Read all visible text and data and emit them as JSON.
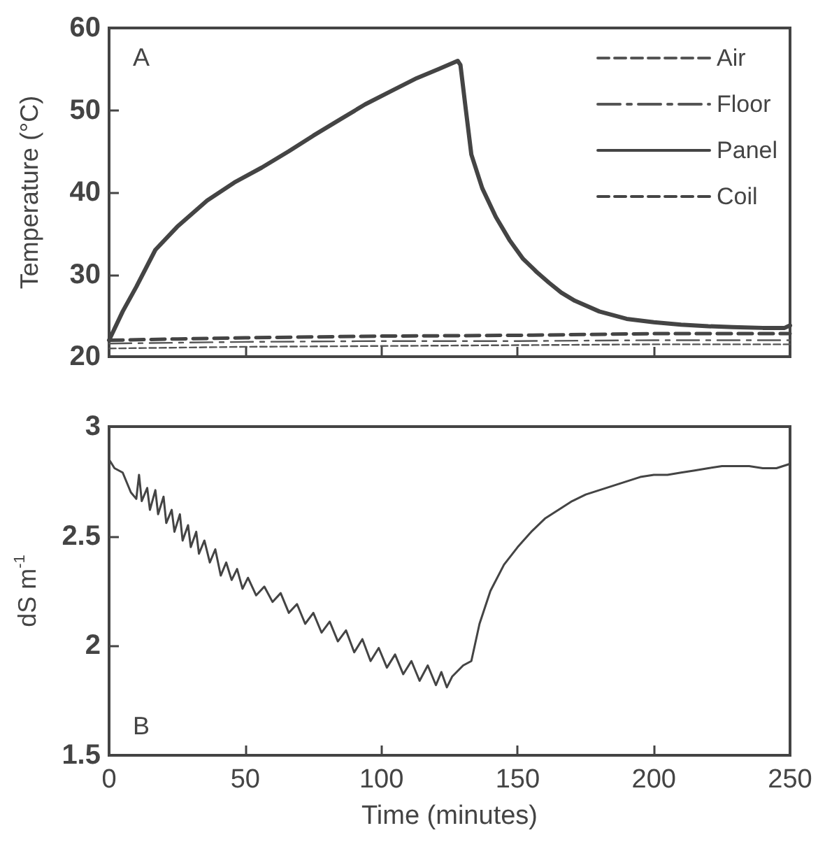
{
  "chart_data": [
    {
      "type": "line",
      "ylabel": "Temperature (°C)",
      "annotations": [
        "A"
      ],
      "xlim": [
        0,
        250
      ],
      "xticks": [
        0,
        50,
        100,
        150,
        200,
        250
      ],
      "ylim": [
        20,
        60
      ],
      "yticks": [
        20,
        30,
        40,
        50,
        60
      ],
      "tick_labels": "y",
      "legend": "top right",
      "grid": false,
      "marker": "none",
      "series": [
        {
          "name": "Air",
          "color": "#555555",
          "line_style": "dashed",
          "x": [
            0,
            50,
            100,
            150,
            200,
            250
          ],
          "values": [
            21.0,
            21.2,
            21.3,
            21.4,
            21.5,
            21.5
          ]
        },
        {
          "name": "Floor",
          "color": "#555555",
          "line_style": "dashed",
          "x": [
            0,
            50,
            100,
            150,
            200,
            250
          ],
          "values": [
            21.6,
            21.8,
            21.9,
            21.9,
            22.0,
            22.0
          ]
        },
        {
          "name": "Panel",
          "color": "#444444",
          "line_style": "solid",
          "x": [
            0,
            5,
            10,
            17,
            25,
            36,
            46,
            56,
            66,
            75,
            85,
            94,
            104,
            113,
            121,
            128,
            129,
            131,
            133,
            137,
            142,
            147,
            152,
            157,
            161.5,
            166,
            171,
            180,
            190,
            200,
            210,
            220,
            229,
            240,
            248,
            250
          ],
          "values": [
            22,
            25.5,
            28.5,
            33,
            35.8,
            39,
            41.2,
            43,
            45,
            46.9,
            48.9,
            50.7,
            52.4,
            53.9,
            55,
            56,
            55.5,
            50,
            44.6,
            40.5,
            37,
            34.2,
            31.9,
            30.3,
            29,
            27.8,
            26.8,
            25.5,
            24.6,
            24.2,
            23.9,
            23.7,
            23.6,
            23.5,
            23.5,
            23.8
          ]
        },
        {
          "name": "Coil",
          "color": "#444444",
          "line_style": "dashed",
          "x": [
            0,
            50,
            100,
            150,
            200,
            250
          ],
          "values": [
            22.0,
            22.3,
            22.5,
            22.6,
            22.8,
            22.8
          ]
        }
      ]
    },
    {
      "type": "line",
      "xlabel": "Time (minutes)",
      "ylabel": "dS m$^{-1}$",
      "annotations": [
        "B"
      ],
      "xlim": [
        0,
        250
      ],
      "xticks": [
        0,
        50,
        100,
        150,
        200,
        250
      ],
      "ylim": [
        1.5,
        3
      ],
      "yticks": [
        1.5,
        2,
        2.5,
        3
      ],
      "legend": false,
      "grid": false,
      "marker": "none",
      "series": [
        {
          "color": "#444444",
          "line_style": "solid",
          "x": [
            0,
            2,
            5,
            8,
            10,
            11,
            12,
            14,
            15,
            17,
            18,
            20,
            21,
            23,
            24,
            26,
            27,
            29,
            30,
            32,
            33,
            35,
            37,
            39,
            41,
            43,
            45,
            47,
            49,
            51,
            54,
            57,
            60,
            63,
            66,
            69,
            72,
            75,
            78,
            81,
            84,
            87,
            90,
            93,
            96,
            99,
            102,
            105,
            108,
            111,
            114,
            117,
            120,
            122,
            124,
            126,
            130,
            133,
            136,
            140,
            145,
            150,
            155,
            160,
            165,
            170,
            175,
            180,
            185,
            190,
            195,
            200,
            205,
            210,
            215,
            220,
            225,
            230,
            235,
            240,
            245,
            250
          ],
          "values": [
            2.85,
            2.81,
            2.79,
            2.7,
            2.67,
            2.78,
            2.66,
            2.72,
            2.62,
            2.71,
            2.6,
            2.68,
            2.56,
            2.62,
            2.52,
            2.6,
            2.48,
            2.55,
            2.45,
            2.52,
            2.42,
            2.48,
            2.38,
            2.44,
            2.32,
            2.38,
            2.3,
            2.35,
            2.26,
            2.31,
            2.23,
            2.27,
            2.2,
            2.24,
            2.15,
            2.19,
            2.1,
            2.15,
            2.06,
            2.11,
            2.02,
            2.07,
            1.97,
            2.03,
            1.93,
            1.99,
            1.9,
            1.96,
            1.87,
            1.93,
            1.84,
            1.91,
            1.82,
            1.88,
            1.81,
            1.86,
            1.91,
            1.93,
            2.1,
            2.25,
            2.37,
            2.45,
            2.52,
            2.58,
            2.62,
            2.66,
            2.69,
            2.71,
            2.73,
            2.75,
            2.77,
            2.78,
            2.78,
            2.79,
            2.8,
            2.81,
            2.82,
            2.82,
            2.82,
            2.81,
            2.81,
            2.83
          ]
        }
      ]
    }
  ]
}
